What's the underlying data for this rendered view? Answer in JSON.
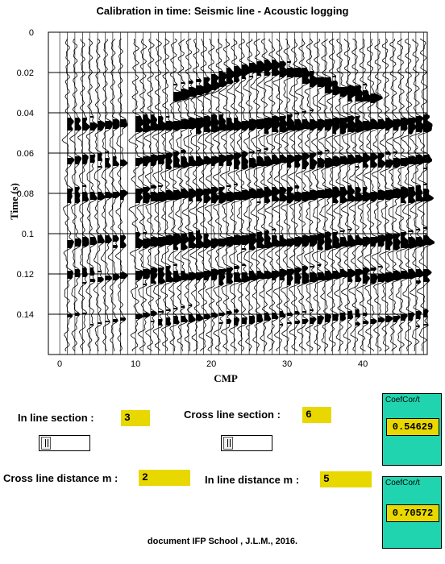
{
  "title": "Calibration in time:  Seismic line - Acoustic logging",
  "chart_data": {
    "type": "seismic-wiggle",
    "ylabel": "Time (s)",
    "xlabel": "CMP",
    "y_ticks": [
      "0",
      "0.02",
      "0.04",
      "0.06",
      "0.08",
      "0.1",
      "0.12",
      "0.14"
    ],
    "y_tick_values": [
      0,
      0.02,
      0.04,
      0.06,
      0.08,
      0.1,
      0.12,
      0.14
    ],
    "x_ticks": [
      "0",
      "10",
      "20",
      "30",
      "40"
    ],
    "x_tick_values": [
      0,
      10,
      20,
      30,
      40
    ],
    "xlim": [
      -1.5,
      48.5
    ],
    "ylim": [
      0,
      0.16
    ],
    "log_traces": [
      1,
      2,
      3,
      4,
      5,
      6,
      7,
      8,
      9
    ],
    "seismic_traces": [
      10,
      48
    ],
    "grid": true
  },
  "controls": {
    "inline_section_label": "In line section :",
    "inline_section_value": "3",
    "crossline_section_label": "Cross line section :",
    "crossline_section_value": "6",
    "crossline_distance_label": "Cross line distance m :",
    "crossline_distance_value": "2",
    "inline_distance_label": "In line distance m :",
    "inline_distance_value": "5"
  },
  "panels": [
    {
      "caption": "CoefCor/t",
      "value": "0.54629"
    },
    {
      "caption": "CoefCor/t",
      "value": "0.70572"
    }
  ],
  "colors": {
    "highlight": "#e8d800",
    "panel": "#21d4b0"
  },
  "credit": "document IFP School , J.L.M., 2016."
}
